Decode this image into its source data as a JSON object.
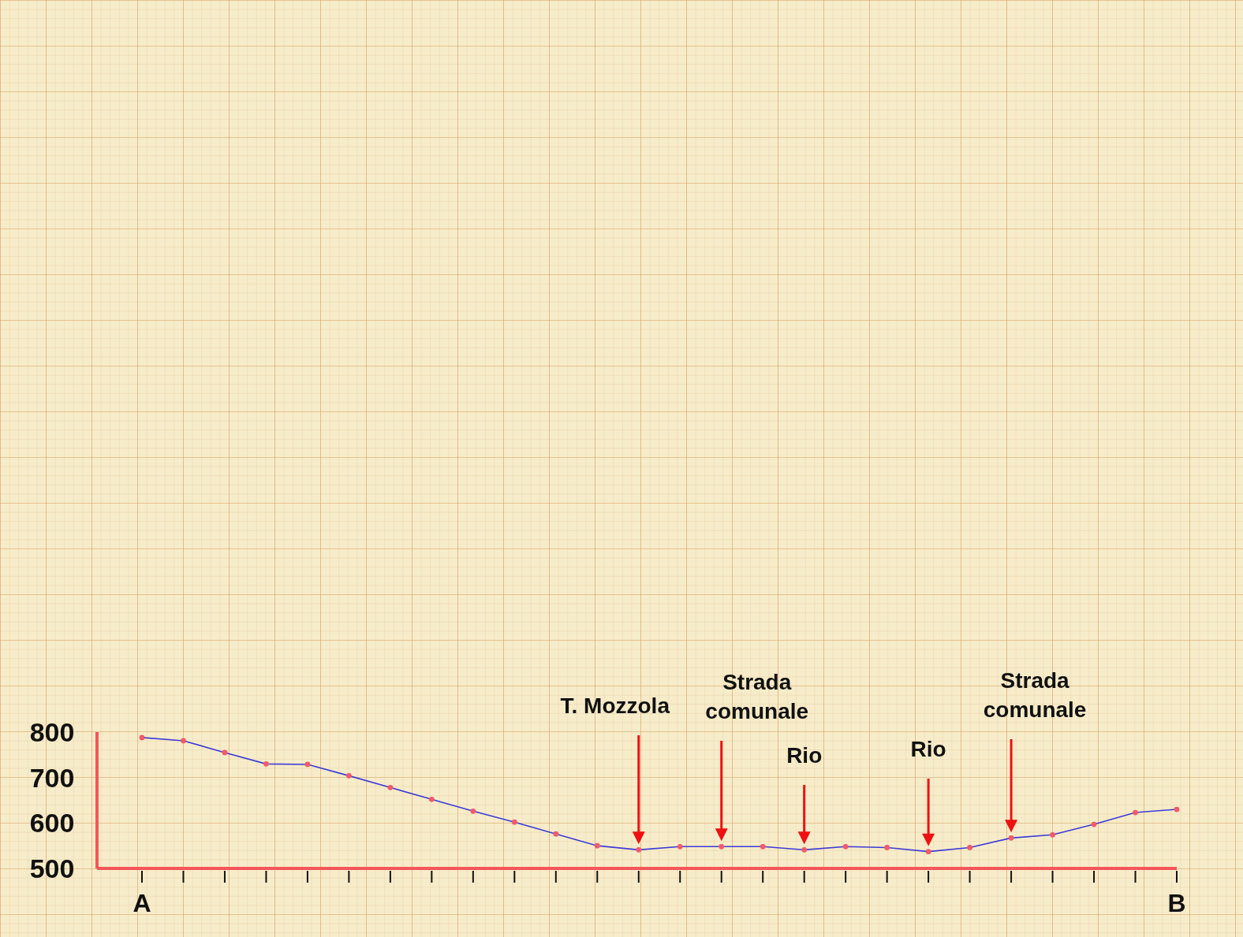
{
  "chart_data": {
    "type": "line",
    "categories": [
      "A",
      null,
      null,
      null,
      null,
      null,
      null,
      null,
      null,
      null,
      null,
      null,
      null,
      null,
      null,
      null,
      null,
      null,
      null,
      null,
      null,
      null,
      null,
      null,
      null,
      "B"
    ],
    "series": [
      {
        "color": "#3b3bd8",
        "values": [
          788,
          781,
          755,
          730,
          729,
          704,
          678,
          652,
          626,
          602,
          576,
          550,
          541,
          548,
          548,
          548,
          541,
          548,
          546,
          537,
          546,
          567,
          574,
          597,
          623,
          630
        ]
      }
    ],
    "ylim": [
      500,
      800
    ],
    "yticks": [
      500,
      600,
      700,
      800
    ],
    "marker": "circle",
    "annotations": [
      "T. Mozzola",
      "Strada comunale",
      "Rio",
      "Rio",
      "Strada comunale"
    ]
  }
}
